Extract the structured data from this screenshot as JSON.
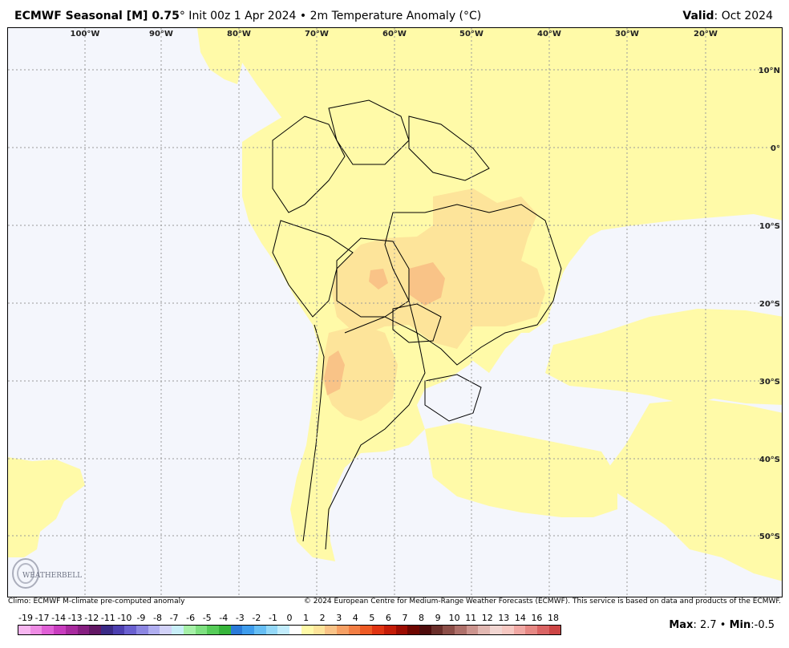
{
  "header": {
    "model": "ECMWF Seasonal [M] 0.75",
    "run": "° Init 00z 1 Apr 2024 • 2m Temperature Anomaly (°C)",
    "valid_label": "Valid",
    "valid_value": ": Oct 2024"
  },
  "map": {
    "lon_labels": [
      "100°W",
      "90°W",
      "80°W",
      "70°W",
      "60°W",
      "50°W",
      "40°W",
      "30°W",
      "20°W"
    ],
    "lat_labels": [
      "10°N",
      "0°",
      "10°S",
      "20°S",
      "30°S",
      "40°S",
      "50°S"
    ],
    "colors": {
      "ocean_background": "#f4f6fc",
      "anomaly_0_1": "#fffaa8",
      "anomaly_1_2": "#fde49a",
      "anomaly_2_3": "#f9c387",
      "border": "#000000",
      "graticule": "#9a9a9a"
    }
  },
  "footer": {
    "climo": "Climo: ECMWF M-climate pre-computed anomaly",
    "copyright": "© 2024 European Centre for Medium-Range Weather Forecasts (ECMWF). This service is based on data and products of the ECMWF.",
    "max_label": "Max",
    "max_value": ": 2.7 •",
    "min_label": "Min",
    "min_value": ":-0.5"
  },
  "logo_text": "WEATHERBELL",
  "scale": {
    "labels": [
      "-19",
      "-17",
      "-14",
      "-13",
      "-12",
      "-11",
      "-10",
      "-9",
      "-8",
      "-7",
      "-6",
      "-5",
      "-4",
      "-3",
      "-2",
      "-1",
      "0",
      "1",
      "2",
      "3",
      "4",
      "5",
      "6",
      "7",
      "8",
      "9",
      "10",
      "11",
      "12",
      "13",
      "14",
      "16",
      "18"
    ],
    "colors": [
      "#f7b6f0",
      "#ee8ce4",
      "#e060d6",
      "#c83cbe",
      "#a82a9e",
      "#861e80",
      "#621764",
      "#3a2a86",
      "#4c3fb0",
      "#6a60d0",
      "#8c86e2",
      "#b0aef0",
      "#d2d2f8",
      "#c8eef8",
      "#a6f0a8",
      "#7ee080",
      "#56cc58",
      "#36b43a",
      "#2a7ad8",
      "#3e9cec",
      "#66bef4",
      "#94d8f8",
      "#c2ecfc",
      "#ffffff",
      "#fffaa8",
      "#fde49a",
      "#f9c387",
      "#f6a064",
      "#f27e44",
      "#ee5a24",
      "#e03412",
      "#c41c08",
      "#9c0c02",
      "#6e0600",
      "#4e0c0c",
      "#6a2e2a",
      "#8c4e48",
      "#ae706a",
      "#cc948e",
      "#e2b8b2",
      "#f2d6d2",
      "#f6c8c2",
      "#f0a8a4",
      "#e68884",
      "#da6464",
      "#cc4444"
    ]
  }
}
